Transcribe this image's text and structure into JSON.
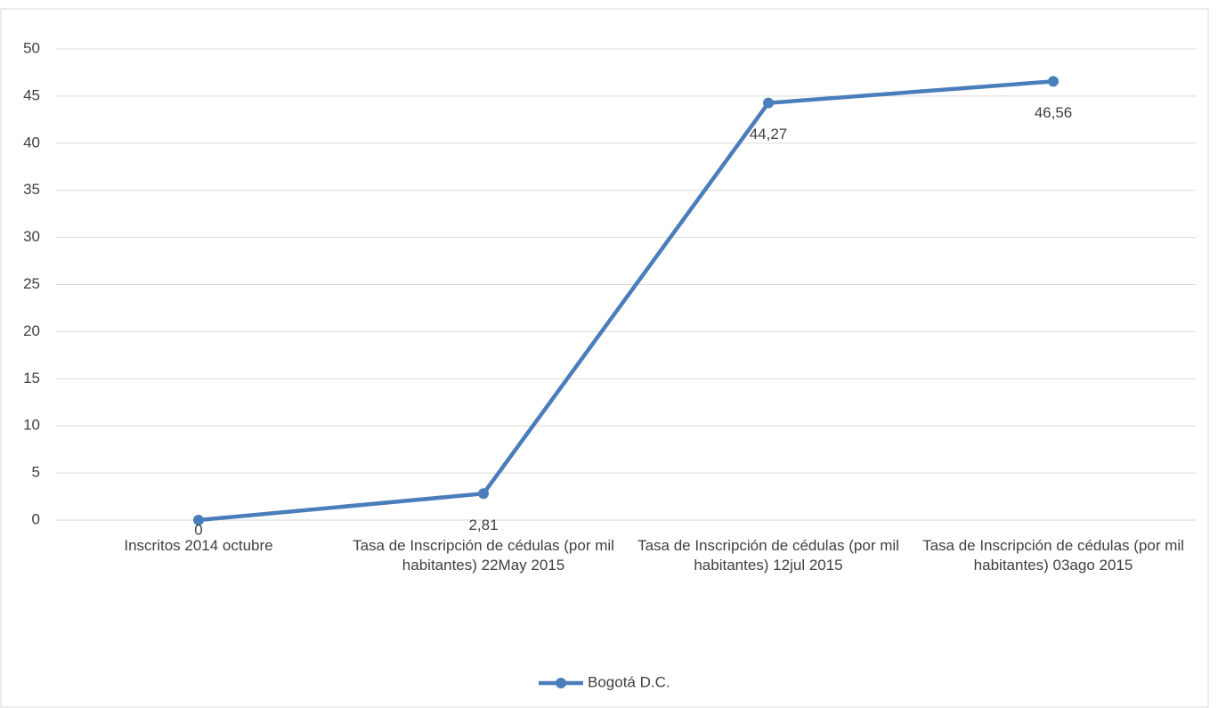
{
  "chart_data": {
    "type": "line",
    "categories": [
      "Inscritos 2014 octubre",
      "Tasa de Inscripción de cédulas (por mil habitantes) 22May 2015",
      "Tasa de Inscripción de cédulas (por mil habitantes) 12jul 2015",
      "Tasa de Inscripción de cédulas (por mil habitantes) 03ago 2015"
    ],
    "series": [
      {
        "name": "Bogotá D.C.",
        "color": "#4a7ebb",
        "values": [
          0,
          2.81,
          44.27,
          46.56
        ],
        "value_labels": [
          "0",
          "2,81",
          "44,27",
          "46,56"
        ]
      }
    ],
    "ylim": [
      0,
      50
    ],
    "yticks": [
      0,
      5,
      10,
      15,
      20,
      25,
      30,
      35,
      40,
      45,
      50
    ],
    "grid": true,
    "legend": "bottom"
  }
}
